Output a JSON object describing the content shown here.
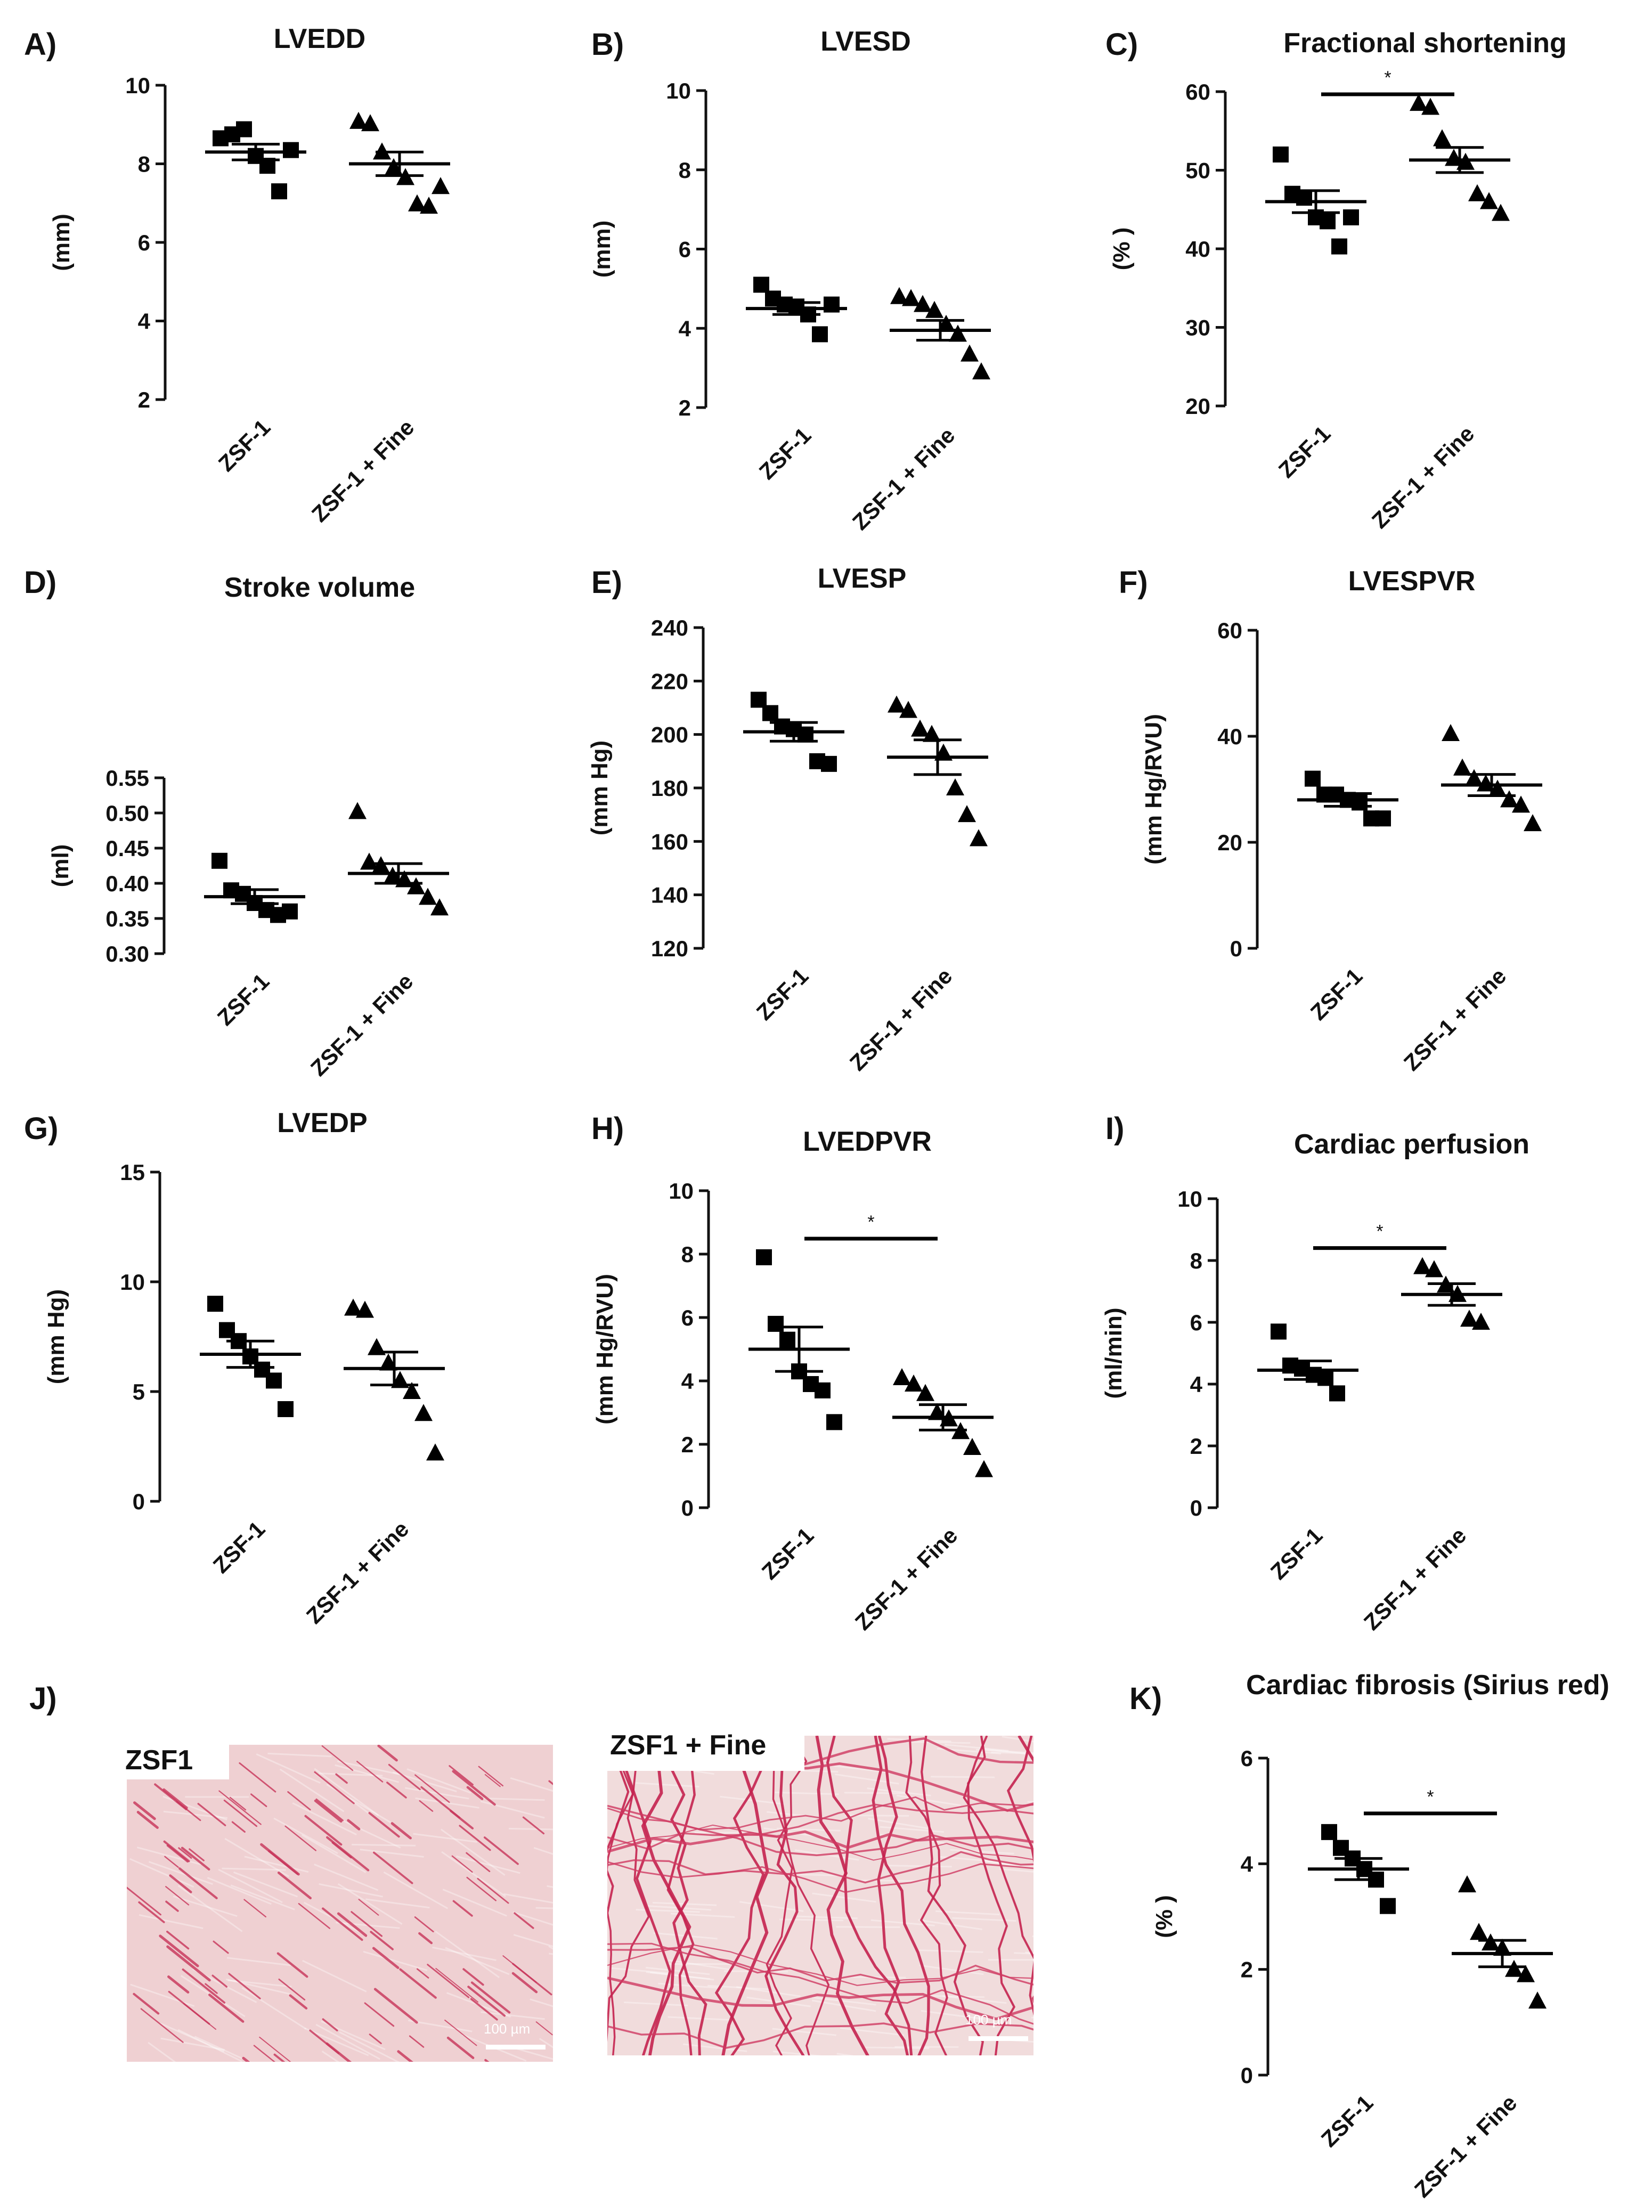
{
  "chart_data": [
    {
      "id": "A",
      "label": "A)",
      "type": "scatter",
      "title": "LVEDD",
      "ylabel": "(mm)",
      "ylim": [
        2,
        10
      ],
      "yticks": [
        "2",
        "4",
        "6",
        "8",
        "10"
      ],
      "categories": [
        "ZSF-1",
        "ZSF-1 + Fine"
      ],
      "series": [
        {
          "marker": "square",
          "values": [
            8.65,
            8.75,
            8.88,
            8.2,
            7.95,
            7.3,
            8.35
          ]
        },
        {
          "marker": "triangle",
          "values": [
            9.08,
            9.02,
            8.3,
            7.9,
            7.65,
            6.98,
            6.92,
            7.42
          ]
        }
      ],
      "mean": [
        8.3,
        8.0
      ],
      "sem": [
        0.2,
        0.3
      ],
      "significance": null
    },
    {
      "id": "B",
      "label": "B)",
      "type": "scatter",
      "title": "LVESD",
      "ylabel": "(mm)",
      "ylim": [
        2,
        10
      ],
      "yticks": [
        "2",
        "4",
        "6",
        "8",
        "10"
      ],
      "categories": [
        "ZSF-1",
        "ZSF-1 + Fine"
      ],
      "series": [
        {
          "marker": "square",
          "values": [
            5.1,
            4.75,
            4.6,
            4.55,
            4.35,
            3.85,
            4.6
          ]
        },
        {
          "marker": "triangle",
          "values": [
            4.8,
            4.75,
            4.6,
            4.45,
            4.1,
            3.85,
            3.35,
            2.9
          ]
        }
      ],
      "mean": [
        4.5,
        3.95
      ],
      "sem": [
        0.15,
        0.25
      ],
      "significance": null
    },
    {
      "id": "C",
      "label": "C)",
      "type": "scatter",
      "title": "Fractional shortening",
      "ylabel": "(% )",
      "ylim": [
        20,
        60
      ],
      "yticks": [
        "20",
        "30",
        "40",
        "50",
        "60"
      ],
      "categories": [
        "ZSF-1",
        "ZSF-1 + Fine"
      ],
      "series": [
        {
          "marker": "square",
          "values": [
            52,
            47,
            46.5,
            44,
            43.5,
            40.3,
            44
          ]
        },
        {
          "marker": "triangle",
          "values": [
            58.5,
            58,
            54,
            51.5,
            51,
            47,
            46,
            44.5
          ]
        }
      ],
      "mean": [
        46,
        51.3
      ],
      "sem": [
        1.4,
        1.6
      ],
      "significance": "*"
    },
    {
      "id": "D",
      "label": "D)",
      "type": "scatter",
      "title": "Stroke volume",
      "ylabel": "(ml)",
      "ylim": [
        0.3,
        0.55
      ],
      "yticks": [
        "0.30",
        "0.35",
        "0.40",
        "0.45",
        "0.50",
        "0.55"
      ],
      "categories": [
        "ZSF-1",
        "ZSF-1 + Fine"
      ],
      "series": [
        {
          "marker": "square",
          "values": [
            0.432,
            0.39,
            0.385,
            0.372,
            0.362,
            0.355,
            0.36
          ]
        },
        {
          "marker": "triangle",
          "values": [
            0.502,
            0.43,
            0.425,
            0.41,
            0.405,
            0.395,
            0.38,
            0.365
          ]
        }
      ],
      "mean": [
        0.381,
        0.414
      ],
      "sem": [
        0.01,
        0.014
      ],
      "significance": null
    },
    {
      "id": "E",
      "label": "E)",
      "type": "scatter",
      "title": "LVESP",
      "ylabel": "(mm Hg)",
      "ylim": [
        120,
        240
      ],
      "yticks": [
        "120",
        "140",
        "160",
        "180",
        "200",
        "220",
        "240"
      ],
      "categories": [
        "ZSF-1",
        "ZSF-1 + Fine"
      ],
      "series": [
        {
          "marker": "square",
          "values": [
            213,
            208,
            203,
            202,
            200,
            190,
            189
          ]
        },
        {
          "marker": "triangle",
          "values": [
            211,
            209,
            202,
            200,
            193,
            180,
            170,
            161
          ]
        }
      ],
      "mean": [
        201,
        191.5
      ],
      "sem": [
        3.5,
        6.5
      ],
      "significance": null
    },
    {
      "id": "F",
      "label": "F)",
      "type": "scatter",
      "title": "LVESPVR",
      "ylabel": "(mm Hg/RVU)",
      "ylim": [
        0,
        60
      ],
      "yticks": [
        "0",
        "20",
        "40",
        "60"
      ],
      "categories": [
        "ZSF-1",
        "ZSF-1 + Fine"
      ],
      "series": [
        {
          "marker": "square",
          "values": [
            32,
            29,
            29,
            28,
            27.5,
            24.5,
            24.5
          ]
        },
        {
          "marker": "triangle",
          "values": [
            40.5,
            34,
            32,
            31,
            30,
            28,
            27,
            23.5
          ]
        }
      ],
      "mean": [
        28,
        30.8
      ],
      "sem": [
        1.2,
        2.0
      ],
      "significance": null
    },
    {
      "id": "G",
      "label": "G)",
      "type": "scatter",
      "title": "LVEDP",
      "ylabel": "(mm Hg)",
      "ylim": [
        0,
        15
      ],
      "yticks": [
        "0",
        "5",
        "10",
        "15"
      ],
      "categories": [
        "ZSF-1",
        "ZSF-1 + Fine"
      ],
      "series": [
        {
          "marker": "square",
          "values": [
            9,
            7.8,
            7.3,
            6.6,
            6.0,
            5.5,
            4.2
          ]
        },
        {
          "marker": "triangle",
          "values": [
            8.8,
            8.7,
            7.0,
            6.3,
            5.5,
            5.0,
            4.0,
            2.2
          ]
        }
      ],
      "mean": [
        6.7,
        6.05
      ],
      "sem": [
        0.6,
        0.75
      ],
      "significance": null
    },
    {
      "id": "H",
      "label": "H)",
      "type": "scatter",
      "title": "LVEDPVR",
      "ylabel": "(mm Hg/RVU)",
      "ylim": [
        0,
        10
      ],
      "yticks": [
        "0",
        "2",
        "4",
        "6",
        "8",
        "10"
      ],
      "categories": [
        "ZSF-1",
        "ZSF-1 + Fine"
      ],
      "series": [
        {
          "marker": "square",
          "values": [
            7.9,
            5.8,
            5.3,
            4.3,
            3.9,
            3.7,
            2.7
          ]
        },
        {
          "marker": "triangle",
          "values": [
            4.1,
            3.9,
            3.6,
            3.0,
            2.8,
            2.4,
            1.9,
            1.2
          ]
        }
      ],
      "mean": [
        5.0,
        2.85
      ],
      "sem": [
        0.7,
        0.4
      ],
      "significance": "*"
    },
    {
      "id": "I",
      "label": "I)",
      "type": "scatter",
      "title": "Cardiac perfusion",
      "ylabel": "(ml/min)",
      "ylim": [
        0,
        10
      ],
      "yticks": [
        "0",
        "2",
        "4",
        "6",
        "8",
        "10"
      ],
      "categories": [
        "ZSF-1",
        "ZSF-1 + Fine"
      ],
      "series": [
        {
          "marker": "square",
          "values": [
            5.7,
            4.6,
            4.5,
            4.3,
            4.2,
            3.7
          ]
        },
        {
          "marker": "triangle",
          "values": [
            7.8,
            7.7,
            7.2,
            6.9,
            6.1,
            6.0
          ]
        }
      ],
      "mean": [
        4.45,
        6.9
      ],
      "sem": [
        0.3,
        0.35
      ],
      "significance": "*"
    },
    {
      "id": "K",
      "label": "K)",
      "type": "scatter",
      "title": "Cardiac fibrosis (Sirius red)",
      "ylabel": "(% )",
      "ylim": [
        0,
        6
      ],
      "yticks": [
        "0",
        "2",
        "4",
        "6"
      ],
      "categories": [
        "ZSF-1",
        "ZSF-1 + Fine"
      ],
      "series": [
        {
          "marker": "square",
          "values": [
            4.6,
            4.3,
            4.1,
            3.9,
            3.7,
            3.2
          ]
        },
        {
          "marker": "triangle",
          "values": [
            3.6,
            2.7,
            2.5,
            2.4,
            2.0,
            1.9,
            1.4
          ]
        }
      ],
      "mean": [
        3.9,
        2.3
      ],
      "sem": [
        0.2,
        0.25
      ],
      "significance": "*"
    }
  ],
  "histology": {
    "label": "J)",
    "images": [
      {
        "label": "ZSF1",
        "scale_text": "100 µm"
      },
      {
        "label": "ZSF1 + Fine",
        "scale_text": "100 µm"
      }
    ]
  }
}
